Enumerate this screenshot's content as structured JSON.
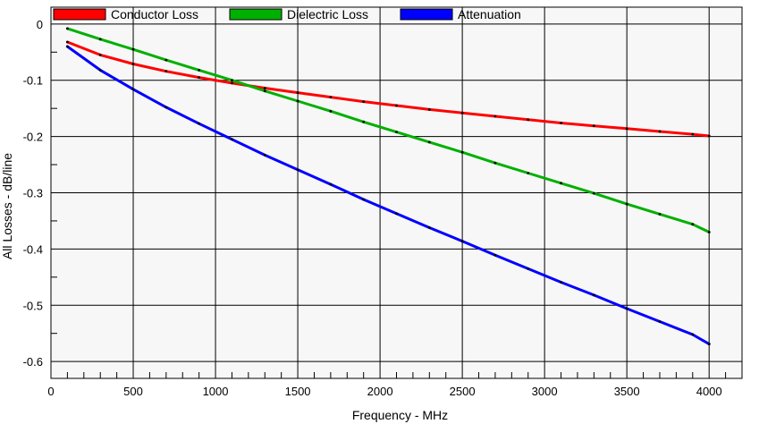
{
  "chart_data": {
    "type": "line",
    "xlabel": "Frequency - MHz",
    "ylabel": "All Losses - dB/line",
    "xlim": [
      0,
      4200
    ],
    "ylim": [
      -0.63,
      0.03
    ],
    "x_ticks": [
      0,
      500,
      1000,
      1500,
      2000,
      2500,
      3000,
      3500,
      4000
    ],
    "x_tick_labels": [
      "0",
      "500",
      "1000",
      "1500",
      "2000",
      "2500",
      "3000",
      "3500",
      "4000"
    ],
    "y_ticks": [
      0,
      -0.1,
      -0.2,
      -0.3,
      -0.4,
      -0.5,
      -0.6
    ],
    "y_tick_labels": [
      "0",
      "-0.1",
      "-0.2",
      "-0.3",
      "-0.4",
      "-0.5",
      "-0.6"
    ],
    "grid": true,
    "legend_position": "top",
    "series": [
      {
        "name": "Conductor Loss",
        "color": "#ff0000",
        "x": [
          100,
          300,
          500,
          700,
          900,
          1100,
          1300,
          1500,
          1700,
          1900,
          2100,
          2300,
          2500,
          2700,
          2900,
          3100,
          3300,
          3500,
          3700,
          3900,
          4000
        ],
        "y": [
          -0.032,
          -0.055,
          -0.071,
          -0.084,
          -0.095,
          -0.105,
          -0.114,
          -0.122,
          -0.13,
          -0.138,
          -0.145,
          -0.152,
          -0.158,
          -0.164,
          -0.17,
          -0.176,
          -0.181,
          -0.186,
          -0.191,
          -0.196,
          -0.199
        ]
      },
      {
        "name": "Dielectric Loss",
        "color": "#00b000",
        "x": [
          100,
          300,
          500,
          700,
          900,
          1100,
          1300,
          1500,
          1700,
          1900,
          2100,
          2300,
          2500,
          2700,
          2900,
          3100,
          3300,
          3500,
          3700,
          3900,
          4000
        ],
        "y": [
          -0.008,
          -0.027,
          -0.045,
          -0.064,
          -0.082,
          -0.1,
          -0.119,
          -0.137,
          -0.155,
          -0.174,
          -0.192,
          -0.21,
          -0.228,
          -0.247,
          -0.265,
          -0.283,
          -0.301,
          -0.32,
          -0.338,
          -0.356,
          -0.37
        ]
      },
      {
        "name": "Attenuation",
        "color": "#0000ff",
        "x": [
          100,
          300,
          500,
          700,
          900,
          1100,
          1300,
          1500,
          1700,
          1900,
          2100,
          2300,
          2500,
          2700,
          2900,
          3100,
          3300,
          3500,
          3700,
          3900,
          4000
        ],
        "y": [
          -0.04,
          -0.082,
          -0.116,
          -0.148,
          -0.177,
          -0.205,
          -0.233,
          -0.259,
          -0.285,
          -0.312,
          -0.337,
          -0.362,
          -0.386,
          -0.411,
          -0.435,
          -0.459,
          -0.482,
          -0.506,
          -0.529,
          -0.552,
          -0.569
        ]
      }
    ]
  }
}
